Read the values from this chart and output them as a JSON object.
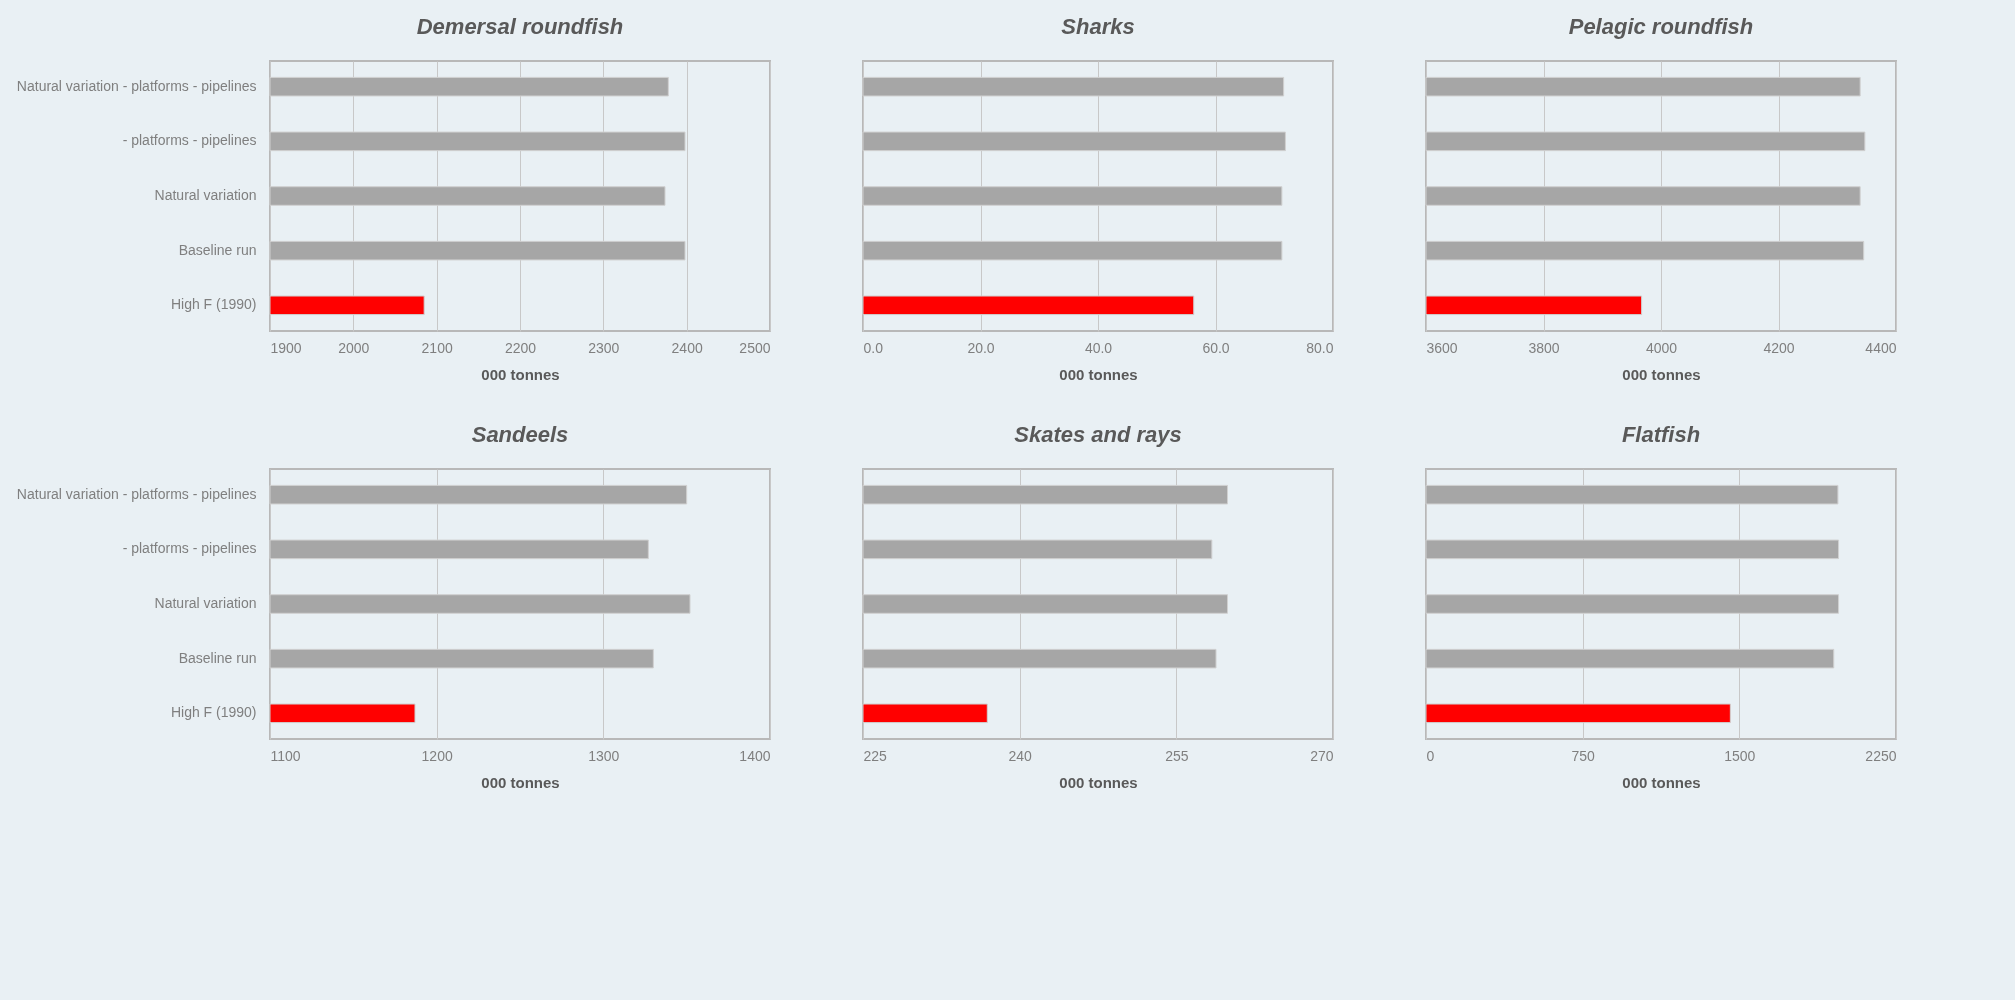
{
  "chart_data": [
    {
      "type": "bar",
      "orientation": "horizontal",
      "title": "Demersal roundfish",
      "xlabel": "000 tonnes",
      "categories": [
        "Natural variation - platforms - pipelines",
        "- platforms - pipelines",
        "Natural variation",
        "Baseline run",
        "High F (1990)"
      ],
      "values": [
        2378,
        2398,
        2374,
        2398,
        2085
      ],
      "colors": [
        "#a6a6a6",
        "#a6a6a6",
        "#a6a6a6",
        "#a6a6a6",
        "#ff0000"
      ],
      "xlim": [
        1900,
        2500
      ],
      "xticks": [
        1900,
        2000,
        2100,
        2200,
        2300,
        2400,
        2500
      ],
      "grid": "x"
    },
    {
      "type": "bar",
      "orientation": "horizontal",
      "title": "Sharks",
      "xlabel": "000 tonnes",
      "categories": [
        null,
        null,
        null,
        null,
        null
      ],
      "values": [
        71.6,
        71.9,
        71.3,
        71.3,
        56.3
      ],
      "colors": [
        "#a6a6a6",
        "#a6a6a6",
        "#a6a6a6",
        "#a6a6a6",
        "#ff0000"
      ],
      "xlim": [
        0,
        80
      ],
      "xticks": [
        {
          "value": 0,
          "label": "0.0"
        },
        {
          "value": 20,
          "label": "20.0"
        },
        {
          "value": 40,
          "label": "40.0"
        },
        {
          "value": 60,
          "label": "60.0"
        },
        {
          "value": 80,
          "label": "80.0"
        }
      ],
      "grid": "x",
      "tick_labels": "x"
    },
    {
      "type": "bar",
      "orientation": "horizontal",
      "title": "Pelagic roundfish",
      "xlabel": "000 tonnes",
      "categories": [
        null,
        null,
        null,
        null,
        null
      ],
      "values": [
        4339,
        4347,
        4339,
        4345,
        3967
      ],
      "colors": [
        "#a6a6a6",
        "#a6a6a6",
        "#a6a6a6",
        "#a6a6a6",
        "#ff0000"
      ],
      "xlim": [
        3600,
        4400
      ],
      "xticks": [
        3600,
        3800,
        4000,
        4200,
        4400
      ],
      "grid": "x",
      "tick_labels": "x"
    },
    {
      "type": "bar",
      "orientation": "horizontal",
      "title": "Sandeels",
      "xlabel": "000 tonnes",
      "categories": [
        "Natural variation - platforms - pipelines",
        "- platforms - pipelines",
        "Natural variation",
        "Baseline run",
        "High F (1990)"
      ],
      "values": [
        1350,
        1327,
        1352,
        1330,
        1187
      ],
      "colors": [
        "#a6a6a6",
        "#a6a6a6",
        "#a6a6a6",
        "#a6a6a6",
        "#ff0000"
      ],
      "xlim": [
        1100,
        1400
      ],
      "xticks": [
        1100,
        1200,
        1300,
        1400
      ],
      "grid": "x"
    },
    {
      "type": "bar",
      "orientation": "horizontal",
      "title": "Skates and rays",
      "xlabel": "000 tonnes",
      "categories": [
        null,
        null,
        null,
        null,
        null
      ],
      "values": [
        259.9,
        258.4,
        259.9,
        258.8,
        236.9
      ],
      "colors": [
        "#a6a6a6",
        "#a6a6a6",
        "#a6a6a6",
        "#a6a6a6",
        "#ff0000"
      ],
      "xlim": [
        225,
        270
      ],
      "xticks": [
        225,
        240,
        255,
        270
      ],
      "grid": "x",
      "tick_labels": "x"
    },
    {
      "type": "bar",
      "orientation": "horizontal",
      "title": "Flatfish",
      "xlabel": "000 tonnes",
      "categories": [
        null,
        null,
        null,
        null,
        null
      ],
      "values": [
        1972,
        1975,
        1975,
        1952,
        1457
      ],
      "colors": [
        "#a6a6a6",
        "#a6a6a6",
        "#a6a6a6",
        "#a6a6a6",
        "#ff0000"
      ],
      "xlim": [
        0,
        2250
      ],
      "xticks": [
        0,
        750,
        1500,
        2250
      ],
      "grid": "x",
      "tick_labels": "x"
    }
  ]
}
